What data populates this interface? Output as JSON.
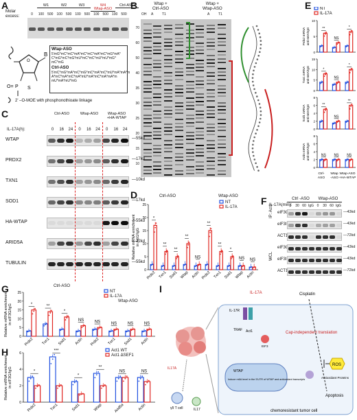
{
  "panels": {
    "A": {
      "letter": "A",
      "molar_excess_label": "Molar\nexcess:",
      "groups": [
        "W1",
        "W2",
        "W3",
        "W4\nWtap-ASO",
        "Ctrl-ASO"
      ],
      "lane_values": [
        "0",
        "100",
        "500",
        "100",
        "500",
        "100",
        "500",
        "100",
        "500",
        "100",
        "500"
      ],
      "oligo_box": {
        "wtap_title": "Wtap-ASO",
        "wtap_seq": "5'mG*mC*mC*mA*mC*mC*mA*mC*mG*mA*\nC*mG*mC*mG*mU*mC*mC*mU*mU*mG*\nmC*mG",
        "ctrl_title": "Ctrl-ASO",
        "ctrl_seq": "5'mC*mG*mA*mC*mG*mC*mA*mC*mU*mA*mA*m\nA*mC*mA*mC*mA*mU*mA*mC*mA*mA*m\nmU*mA*mU*mG",
        "footnote": "2' –O-MOE with phosphonothioate linkage",
        "base_label": "B",
        "o_label": "O=",
        "p_label": "P",
        "s_label": "S"
      }
    },
    "B": {
      "letter": "B",
      "left_header": "Wtap +\nCtrl-ASO",
      "right_header": "Wtap +\nWtap-ASO",
      "lane_labels": [
        "OH",
        "A",
        "T1",
        "A",
        "T1"
      ],
      "sublanes": [
        "-",
        "+",
        "-",
        "+"
      ],
      "ladder": [
        "70",
        "60",
        "50",
        "40",
        "35",
        "30",
        "25",
        "20",
        "15",
        "10"
      ]
    },
    "C": {
      "letter": "C",
      "groups": [
        "Ctrl-ASO",
        "Wtap-ASO",
        "Wtap-ASO\n+HA-WTAP"
      ],
      "time_label": "IL-17A(h):",
      "times": [
        "0",
        "16",
        "24",
        "0",
        "16",
        "24",
        "0",
        "16",
        "24"
      ],
      "rows": [
        {
          "name": "WTAP",
          "kd": "55kd"
        },
        {
          "name": "PRDX2",
          "kd": "17kd"
        },
        {
          "name": "TXN1",
          "kd": "10kd"
        },
        {
          "name": "SOD1",
          "kd": "17kd"
        },
        {
          "name": "HA-WTAP",
          "kd": "55kd"
        },
        {
          "name": "ARID5A",
          "kd": "72kd"
        },
        {
          "name": "TUBULIN",
          "kd": "55kd"
        }
      ]
    },
    "D": {
      "letter": "D",
      "group_left": "Ctrl-ASO",
      "group_right": "Wtap-ASO",
      "ylabel": "Relative mRNA enrichment\nin Act1/IgG"
    },
    "E": {
      "letter": "E",
      "ylabels": [
        "Prdx2 mRNA\nanti-m6A/IgG",
        "Txn1 mRNA\nanti-m6A/IgG",
        "Sod1 mRNA\nanti-m6A/IgG",
        "Actin mRNA\nanti-m6A/IgG"
      ],
      "xcats": [
        "Ctrl-\nASO",
        "Wtap\n-ASO",
        "Wtap-ASO\n+HA-WTAP"
      ]
    },
    "F": {
      "letter": "F",
      "groups": [
        "Ctrl -ASO",
        "Wtap-ASO"
      ],
      "time_label": "IL-17A(min):",
      "times": [
        "0",
        "30",
        "60",
        "IgG",
        "0",
        "30",
        "60",
        "IgG"
      ],
      "ip_label": "IP: Act1",
      "wcl_label": "WCL",
      "rows": [
        {
          "name": "eIF3G",
          "kd": "43kd"
        },
        {
          "name": "eIF3I",
          "kd": "43kd"
        },
        {
          "name": "ACT1",
          "kd": "72kd"
        },
        {
          "name": "eIF3G",
          "kd": "43kd"
        },
        {
          "name": "eIF3I",
          "kd": "43kd"
        },
        {
          "name": "ACT1",
          "kd": "72kd"
        }
      ]
    },
    "G": {
      "letter": "G",
      "group_left": "Ctrl-ASO",
      "group_right": "Wtap-ASO",
      "ylabel": "Relative mRNA enrichment\nin eIF3G/IgG"
    },
    "H": {
      "letter": "H",
      "ylabel": "Relative mRNA enrichment\nin eIF3G/IgG"
    },
    "I": {
      "letter": "I",
      "labels": {
        "il17a_top": "IL-17A",
        "cisplatin": "Cisplatin",
        "il17r": "IL-17R",
        "traf": "TRAF",
        "cap_indep": "Cap-independent\ntranslation",
        "wtap": "WTAP",
        "induce": "Induce m6A level in the 5'UTR of\nWTAP and antioxidant transcripts",
        "antiox": "Antioxidant\nProteins",
        "ros": "ROS",
        "apoptosis": "Apoptosis",
        "tumor": "chemoresistant tumor cell",
        "il17a_left": "IL17A",
        "th17": "γδ T cell",
        "il17": "IL17",
        "eif3": "EIF3",
        "act1": "Act1"
      }
    }
  },
  "legends": {
    "nt_il17a": [
      {
        "name": "NT",
        "color": "#1f4fe0"
      },
      {
        "name": "IL-17A",
        "color": "#e0241f"
      }
    ],
    "act1": [
      {
        "name": "Act1 WT",
        "color": "#1f4fe0"
      },
      {
        "name": "Act1 ΔSEF1",
        "color": "#e0241f"
      }
    ]
  },
  "chart_data": [
    {
      "type": "bar",
      "panel": "D",
      "ylabel": "Relative mRNA enrichment in Act1/IgG",
      "ylim": [
        0,
        25
      ],
      "yticks": [
        0,
        5,
        10,
        15,
        20,
        25
      ],
      "categories": [
        "Prdx2",
        "Txn1",
        "Sod1",
        "Wtap",
        "Actin",
        "Prdx2",
        "Txn1",
        "Sod1",
        "Wtap",
        "Actin"
      ],
      "series": [
        {
          "name": "NT",
          "values": [
            2,
            1.5,
            1.5,
            2,
            1.5,
            2,
            1.5,
            1.5,
            1.5,
            1
          ]
        },
        {
          "name": "IL-17A",
          "values": [
            17,
            7,
            5,
            10,
            2,
            15,
            7,
            5,
            1.5,
            1
          ]
        }
      ],
      "significance": [
        "*",
        "**",
        "**",
        "**",
        "NS",
        "**",
        "**",
        "*",
        "NS",
        "NS"
      ]
    },
    {
      "type": "bar",
      "panel": "E",
      "ylabel": "Prdx2 mRNA anti-m6A/IgG",
      "ylim": [
        0,
        10
      ],
      "yticks": [
        0,
        5,
        10
      ],
      "categories": [
        "Ctrl-ASO",
        "Wtap-ASO",
        "Wtap-ASO+HA-WTAP"
      ],
      "series": [
        {
          "name": "NT",
          "values": [
            2,
            1.5,
            2
          ]
        },
        {
          "name": "IL-17A",
          "values": [
            6,
            3,
            6.5
          ]
        }
      ],
      "significance": [
        "**",
        "NS",
        "*"
      ]
    },
    {
      "type": "bar",
      "panel": "E",
      "ylabel": "Txn1 mRNA anti-m6A/IgG",
      "ylim": [
        0,
        15
      ],
      "yticks": [
        0,
        5,
        10,
        15
      ],
      "categories": [
        "Ctrl-ASO",
        "Wtap-ASO",
        "Wtap-ASO+HA-WTAP"
      ],
      "series": [
        {
          "name": "NT",
          "values": [
            4,
            3,
            4
          ]
        },
        {
          "name": "IL-17A",
          "values": [
            8,
            4,
            10
          ]
        }
      ],
      "significance": [
        "*",
        "NS",
        "*"
      ]
    },
    {
      "type": "bar",
      "panel": "E",
      "ylabel": "Sod1 mRNA anti-m6A/IgG",
      "ylim": [
        0,
        8
      ],
      "yticks": [
        0,
        2,
        4,
        6,
        8
      ],
      "categories": [
        "Ctrl-ASO",
        "Wtap-ASO",
        "Wtap-ASO+HA-WTAP"
      ],
      "series": [
        {
          "name": "NT",
          "values": [
            2,
            1.5,
            2
          ]
        },
        {
          "name": "IL-17A",
          "values": [
            5,
            2,
            6
          ]
        }
      ],
      "significance": [
        "**",
        "NS",
        "**"
      ]
    },
    {
      "type": "bar",
      "panel": "E",
      "ylabel": "Actin mRNA anti-m6A/IgG",
      "ylim": [
        0,
        8
      ],
      "yticks": [
        0,
        2,
        4,
        6,
        8
      ],
      "categories": [
        "Ctrl-ASO",
        "Wtap-ASO",
        "Wtap-ASO+HA-WTAP"
      ],
      "series": [
        {
          "name": "NT",
          "values": [
            2,
            2,
            2
          ]
        },
        {
          "name": "IL-17A",
          "values": [
            2,
            2,
            2
          ]
        }
      ],
      "significance": [
        "NS",
        "NS",
        "NS"
      ]
    },
    {
      "type": "bar",
      "panel": "G",
      "ylabel": "Relative mRNA enrichment in eIF3G/IgG",
      "ylim": [
        0,
        25
      ],
      "yticks": [
        0,
        5,
        10,
        15,
        20,
        25
      ],
      "categories": [
        "Prdx2",
        "Txn1",
        "Sod1",
        "Actin",
        "Prdx2",
        "Txn1",
        "Sod1",
        "Actin"
      ],
      "series": [
        {
          "name": "NT",
          "values": [
            3,
            7,
            4,
            3,
            4,
            3,
            3,
            3
          ]
        },
        {
          "name": "IL-17A",
          "values": [
            15,
            14,
            11,
            6,
            5,
            4,
            4,
            4
          ]
        }
      ],
      "significance": [
        "*",
        "**",
        "*",
        "NS",
        "NS",
        "NS",
        "NS",
        "NS"
      ]
    },
    {
      "type": "bar",
      "panel": "H",
      "ylabel": "Relative mRNA enrichment in eIF3G/IgG",
      "ylim": [
        0,
        6
      ],
      "yticks": [
        0,
        2,
        4,
        6
      ],
      "categories": [
        "Prdx2",
        "Txn1",
        "Sod1",
        "Wtap",
        "Arid5a",
        "Actin"
      ],
      "series": [
        {
          "name": "Act1 WT",
          "values": [
            3,
            5.5,
            2.5,
            3.5,
            3,
            3
          ]
        },
        {
          "name": "Act1 ΔSEF1",
          "values": [
            2,
            2,
            1,
            2,
            3,
            2.5
          ]
        }
      ],
      "significance": [
        "*",
        "***",
        "*",
        "**",
        "NS",
        "NS"
      ]
    }
  ]
}
